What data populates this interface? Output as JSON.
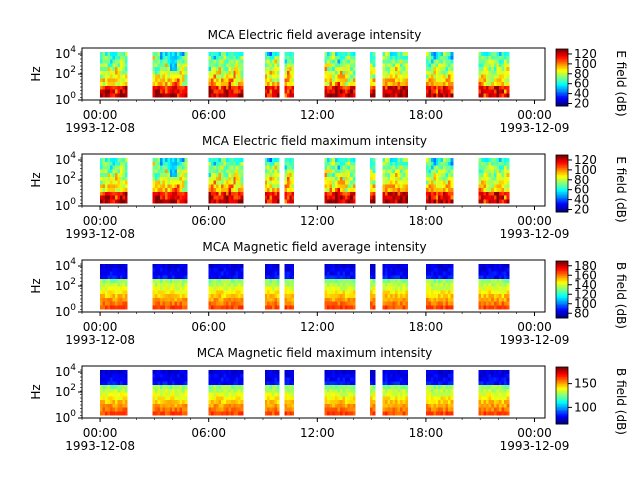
{
  "chart_data": [
    {
      "type": "heatmap",
      "title": "MCA  Electric field average intensity",
      "ylabel": "Hz",
      "y_scale": "log",
      "y_ticks": [
        {
          "base": "10",
          "exp": "0"
        },
        {
          "base": "10",
          "exp": "2"
        },
        {
          "base": "10",
          "exp": "4"
        }
      ],
      "x_tick_labels": [
        "00:00",
        "06:00",
        "12:00",
        "18:00",
        "00:00"
      ],
      "x_date_labels": [
        "1993-12-08",
        "1993-12-09"
      ],
      "colorbar": {
        "label": "E field (dB)",
        "colormap": "jet",
        "ticks": [
          "20",
          "40",
          "60",
          "80",
          "100",
          "120"
        ],
        "range": [
          15,
          130
        ]
      },
      "segments_hours": [
        [
          1.0,
          2.5
        ],
        [
          3.9,
          5.8
        ],
        [
          7.0,
          8.9
        ],
        [
          10.1,
          10.9
        ],
        [
          11.2,
          11.7
        ],
        [
          13.4,
          15.1
        ],
        [
          15.9,
          16.2
        ],
        [
          16.6,
          18.0
        ],
        [
          19.0,
          20.5
        ],
        [
          21.9,
          23.6
        ]
      ],
      "pattern": "electric"
    },
    {
      "type": "heatmap",
      "title": "MCA  Electric field maximum intensity",
      "ylabel": "Hz",
      "y_scale": "log",
      "y_ticks": [
        {
          "base": "10",
          "exp": "0"
        },
        {
          "base": "10",
          "exp": "2"
        },
        {
          "base": "10",
          "exp": "4"
        }
      ],
      "x_tick_labels": [
        "00:00",
        "06:00",
        "12:00",
        "18:00",
        "00:00"
      ],
      "x_date_labels": [
        "1993-12-08",
        "1993-12-09"
      ],
      "colorbar": {
        "label": "E field (dB)",
        "colormap": "jet",
        "ticks": [
          "20",
          "40",
          "60",
          "80",
          "100",
          "120"
        ],
        "range": [
          15,
          130
        ]
      },
      "segments_hours": [
        [
          1.0,
          2.5
        ],
        [
          3.9,
          5.8
        ],
        [
          7.0,
          8.9
        ],
        [
          10.1,
          10.9
        ],
        [
          11.2,
          11.7
        ],
        [
          13.4,
          15.1
        ],
        [
          15.9,
          16.2
        ],
        [
          16.6,
          18.0
        ],
        [
          19.0,
          20.5
        ],
        [
          21.9,
          23.6
        ]
      ],
      "pattern": "electric"
    },
    {
      "type": "heatmap",
      "title": "MCA  Magnetic field average intensity",
      "ylabel": "Hz",
      "y_scale": "log",
      "y_ticks": [
        {
          "base": "10",
          "exp": "0"
        },
        {
          "base": "10",
          "exp": "2"
        },
        {
          "base": "10",
          "exp": "4"
        }
      ],
      "x_tick_labels": [
        "00:00",
        "06:00",
        "12:00",
        "18:00",
        "00:00"
      ],
      "x_date_labels": [
        "1993-12-08",
        "1993-12-09"
      ],
      "colorbar": {
        "label": "B field (dB)",
        "colormap": "jet",
        "ticks": [
          "80",
          "100",
          "120",
          "140",
          "160",
          "180"
        ],
        "range": [
          70,
          190
        ]
      },
      "segments_hours": [
        [
          1.0,
          2.5
        ],
        [
          3.9,
          5.8
        ],
        [
          7.0,
          8.9
        ],
        [
          10.1,
          10.9
        ],
        [
          11.2,
          11.7
        ],
        [
          13.4,
          15.1
        ],
        [
          15.9,
          16.2
        ],
        [
          16.6,
          18.0
        ],
        [
          19.0,
          20.5
        ],
        [
          21.9,
          23.6
        ]
      ],
      "pattern": "magnetic"
    },
    {
      "type": "heatmap",
      "title": "MCA  Magnetic field maximum intensity",
      "ylabel": "Hz",
      "y_scale": "log",
      "y_ticks": [
        {
          "base": "10",
          "exp": "0"
        },
        {
          "base": "10",
          "exp": "2"
        },
        {
          "base": "10",
          "exp": "4"
        }
      ],
      "x_tick_labels": [
        "00:00",
        "06:00",
        "12:00",
        "18:00",
        "00:00"
      ],
      "x_date_labels": [
        "1993-12-08",
        "1993-12-09"
      ],
      "colorbar": {
        "label": "B field (dB)",
        "colormap": "jet",
        "ticks": [
          "100",
          "150"
        ],
        "range": [
          65,
          185
        ]
      },
      "segments_hours": [
        [
          1.0,
          2.5
        ],
        [
          3.9,
          5.8
        ],
        [
          7.0,
          8.9
        ],
        [
          10.1,
          10.9
        ],
        [
          11.2,
          11.7
        ],
        [
          13.4,
          15.1
        ],
        [
          15.9,
          16.2
        ],
        [
          16.6,
          18.0
        ],
        [
          19.0,
          20.5
        ],
        [
          21.9,
          23.6
        ]
      ],
      "pattern": "magnetic"
    }
  ]
}
